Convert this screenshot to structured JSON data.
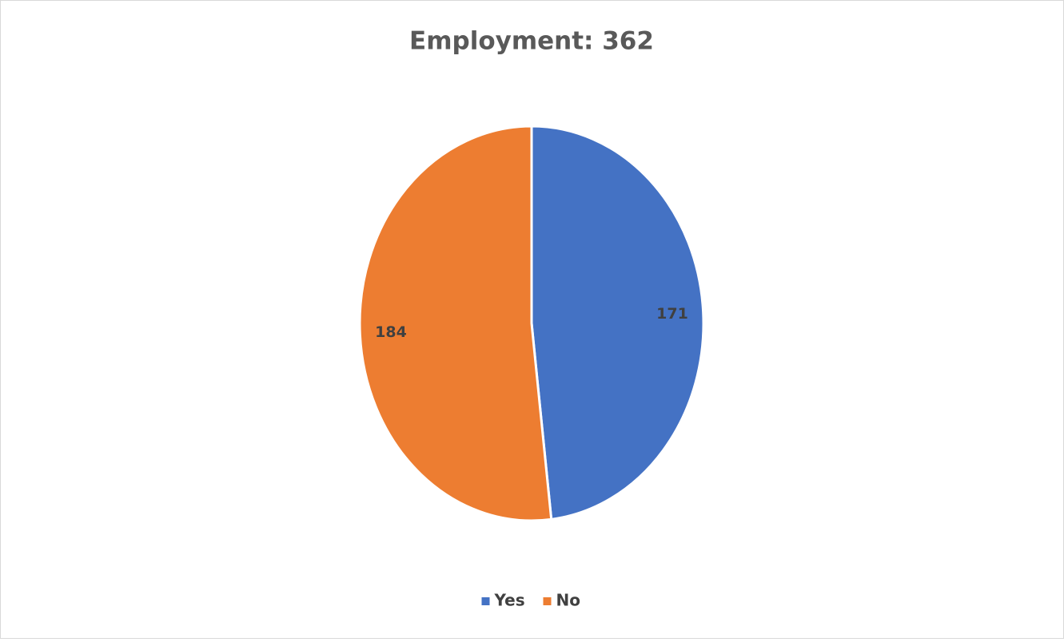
{
  "chart_data": {
    "type": "pie",
    "title": "Employment: 362",
    "categories": [
      "Yes",
      "No"
    ],
    "values": [
      171,
      184
    ],
    "colors": [
      "#4472c4",
      "#ed7d31"
    ],
    "legend": "bottom"
  }
}
